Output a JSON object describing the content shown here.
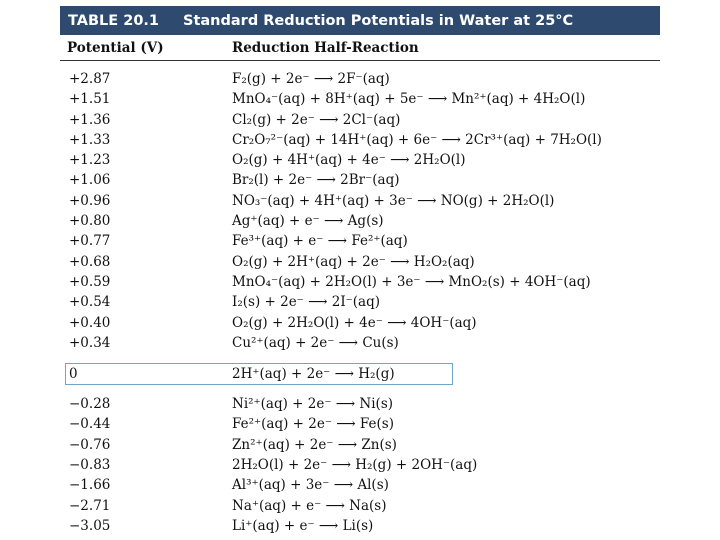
{
  "table": {
    "number": "TABLE 20.1",
    "title": "Standard Reduction Potentials in Water at 25°C",
    "headers": {
      "potential": "Potential (V)",
      "reaction": "Reduction Half-Reaction"
    },
    "rows": [
      {
        "potential": "+2.87",
        "reaction": "F₂(g) + 2e⁻ ⟶ 2F⁻(aq)"
      },
      {
        "potential": "+1.51",
        "reaction": "MnO₄⁻(aq) + 8H⁺(aq) + 5e⁻ ⟶ Mn²⁺(aq) + 4H₂O(l)"
      },
      {
        "potential": "+1.36",
        "reaction": "Cl₂(g) + 2e⁻ ⟶ 2Cl⁻(aq)"
      },
      {
        "potential": "+1.33",
        "reaction": "Cr₂O₇²⁻(aq) + 14H⁺(aq) + 6e⁻ ⟶ 2Cr³⁺(aq) + 7H₂O(l)"
      },
      {
        "potential": "+1.23",
        "reaction": "O₂(g) + 4H⁺(aq) + 4e⁻ ⟶ 2H₂O(l)"
      },
      {
        "potential": "+1.06",
        "reaction": "Br₂(l) + 2e⁻ ⟶ 2Br⁻(aq)"
      },
      {
        "potential": "+0.96",
        "reaction": "NO₃⁻(aq) + 4H⁺(aq) + 3e⁻ ⟶ NO(g) + 2H₂O(l)"
      },
      {
        "potential": "+0.80",
        "reaction": "Ag⁺(aq) + e⁻ ⟶ Ag(s)"
      },
      {
        "potential": "+0.77",
        "reaction": "Fe³⁺(aq) + e⁻ ⟶ Fe²⁺(aq)"
      },
      {
        "potential": "+0.68",
        "reaction": "O₂(g) + 2H⁺(aq) + 2e⁻ ⟶ H₂O₂(aq)"
      },
      {
        "potential": "+0.59",
        "reaction": "MnO₄⁻(aq) + 2H₂O(l) + 3e⁻ ⟶ MnO₂(s) + 4OH⁻(aq)"
      },
      {
        "potential": "+0.54",
        "reaction": "I₂(s) + 2e⁻ ⟶ 2I⁻(aq)"
      },
      {
        "potential": "+0.40",
        "reaction": "O₂(g) + 2H₂O(l) + 4e⁻ ⟶ 4OH⁻(aq)"
      },
      {
        "potential": "+0.34",
        "reaction": "Cu²⁺(aq) + 2e⁻ ⟶ Cu(s)"
      }
    ],
    "zero_row": {
      "potential": "0",
      "reaction": "2H⁺(aq) + 2e⁻ ⟶ H₂(g)"
    },
    "neg_rows": [
      {
        "potential": "−0.28",
        "reaction": "Ni²⁺(aq) + 2e⁻ ⟶ Ni(s)"
      },
      {
        "potential": "−0.44",
        "reaction": "Fe²⁺(aq) + 2e⁻ ⟶ Fe(s)"
      },
      {
        "potential": "−0.76",
        "reaction": "Zn²⁺(aq) + 2e⁻ ⟶ Zn(s)"
      },
      {
        "potential": "−0.83",
        "reaction": "2H₂O(l) + 2e⁻ ⟶ H₂(g) + 2OH⁻(aq)"
      },
      {
        "potential": "−1.66",
        "reaction": "Al³⁺(aq) + 3e⁻ ⟶ Al(s)"
      },
      {
        "potential": "−2.71",
        "reaction": "Na⁺(aq) + e⁻ ⟶ Na(s)"
      },
      {
        "potential": "−3.05",
        "reaction": "Li⁺(aq) + e⁻ ⟶ Li(s)"
      }
    ]
  }
}
